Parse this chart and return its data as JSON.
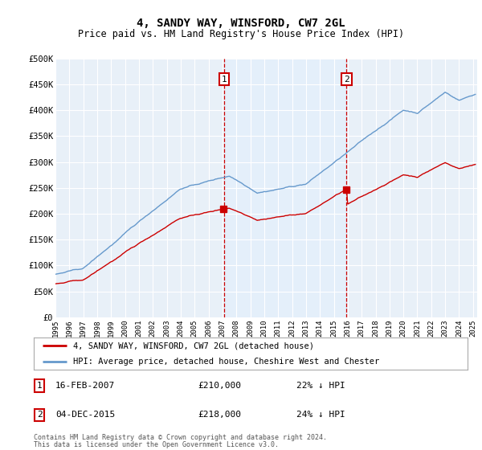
{
  "title": "4, SANDY WAY, WINSFORD, CW7 2GL",
  "subtitle": "Price paid vs. HM Land Registry's House Price Index (HPI)",
  "legend_line1": "4, SANDY WAY, WINSFORD, CW7 2GL (detached house)",
  "legend_line2": "HPI: Average price, detached house, Cheshire West and Chester",
  "annotation1_date": "16-FEB-2007",
  "annotation1_price": "£210,000",
  "annotation1_hpi": "22% ↓ HPI",
  "annotation1_year": 2007.12,
  "annotation2_date": "04-DEC-2015",
  "annotation2_price": "£218,000",
  "annotation2_hpi": "24% ↓ HPI",
  "annotation2_year": 2015.92,
  "footer1": "Contains HM Land Registry data © Crown copyright and database right 2024.",
  "footer2": "This data is licensed under the Open Government Licence v3.0.",
  "hpi_color": "#6699cc",
  "price_color": "#cc0000",
  "annotation_color": "#cc0000",
  "fill_color": "#ddeeff",
  "bg_color": "#e8f0f8",
  "plot_bg": "#ffffff",
  "ylim": [
    0,
    500000
  ],
  "xlim_start": 1995.0,
  "xlim_end": 2025.3
}
